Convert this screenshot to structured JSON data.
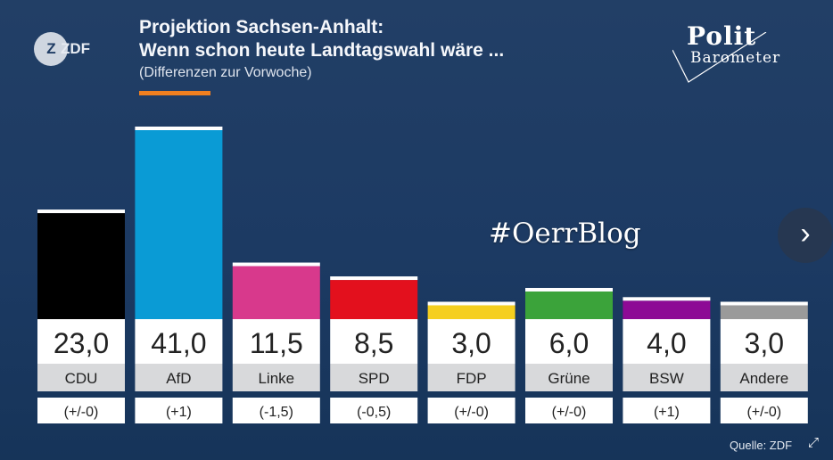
{
  "header": {
    "title_line1": "Projektion Sachsen-Anhalt:",
    "title_line2": "Wenn schon heute Landtagswahl wäre ...",
    "subtitle": "(Differenzen zur Vorwoche)"
  },
  "logo": {
    "text": "ZDF",
    "icon": "zdf-logo"
  },
  "brand": {
    "line1": "Polit",
    "line2": "Barometer"
  },
  "watermark": "#OerrBlog",
  "source": "Quelle: ZDF",
  "icons": {
    "next": "chevron-right-icon",
    "expand": "expand-icon"
  },
  "chart_data": {
    "type": "bar",
    "categories": [
      "CDU",
      "AfD",
      "Linke",
      "SPD",
      "FDP",
      "Grüne",
      "BSW",
      "Andere"
    ],
    "values": [
      23.0,
      41.0,
      11.5,
      8.5,
      3.0,
      6.0,
      4.0,
      3.0
    ],
    "value_labels": [
      "23,0",
      "41,0",
      "11,5",
      "8,5",
      "3,0",
      "6,0",
      "4,0",
      "3,0"
    ],
    "changes": [
      "(+/-0)",
      "(+1)",
      "(-1,5)",
      "(-0,5)",
      "(+/-0)",
      "(+/-0)",
      "(+1)",
      "(+/-0)"
    ],
    "colors": [
      "#000000",
      "#0a9bd5",
      "#d8398c",
      "#e3101d",
      "#f5cf1f",
      "#3ba33a",
      "#8d0a95",
      "#9a9a9a"
    ],
    "ylim": [
      0,
      41
    ]
  }
}
